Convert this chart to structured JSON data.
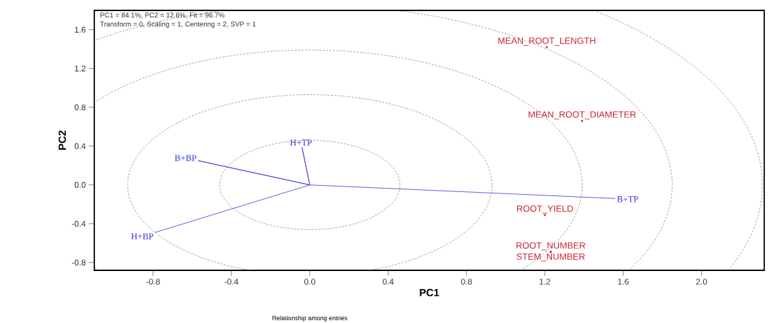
{
  "chart_data": {
    "type": "line",
    "title": "Relationship among entries",
    "xlabel": "PC1",
    "ylabel": "PC2",
    "annotations": [
      "PC1 = 84.1%, PC2 = 12.6%, Fit = 96.7%",
      "Transform = 0, Scaling = 1, Centering = 2, SVP = 1"
    ],
    "xlim": [
      -1.1,
      2.32
    ],
    "ylim": [
      -0.88,
      1.8
    ],
    "xticks": [
      -0.8,
      -0.4,
      {
        "value": 0,
        "label": "0.0"
      },
      0.4,
      0.8,
      1.2,
      1.6,
      {
        "value": 2,
        "label": "2.0"
      }
    ],
    "yticks": [
      -0.8,
      -0.4,
      {
        "value": 0,
        "label": "0.0"
      },
      0.4,
      0.8,
      1.2,
      1.6
    ],
    "series": [
      {
        "color": "#3333dd",
        "x": [
          1.56,
          0,
          -0.04,
          0,
          -0.57,
          0,
          -0.79
        ],
        "values": [
          -0.14,
          0,
          0.39,
          0,
          0.25,
          0,
          -0.49
        ],
        "value_labels": [
          "B+TP",
          null,
          "H+TP",
          null,
          "B+BP",
          null,
          "H+BP"
        ]
      },
      {
        "type": "scatter",
        "marker": "circle",
        "color": "#cc2233",
        "x": [
          1.21,
          1.39,
          1.2,
          1.23,
          1.23
        ],
        "values": [
          1.42,
          0.66,
          -0.31,
          -0.69,
          -0.69
        ],
        "value_labels": [
          "MEAN_ROOT_LENGTH",
          "MEAN_ROOT_DIAMETER",
          "ROOT_YIELD",
          "ROOT_NUMBER",
          "STEM_NUMBER"
        ]
      }
    ]
  }
}
